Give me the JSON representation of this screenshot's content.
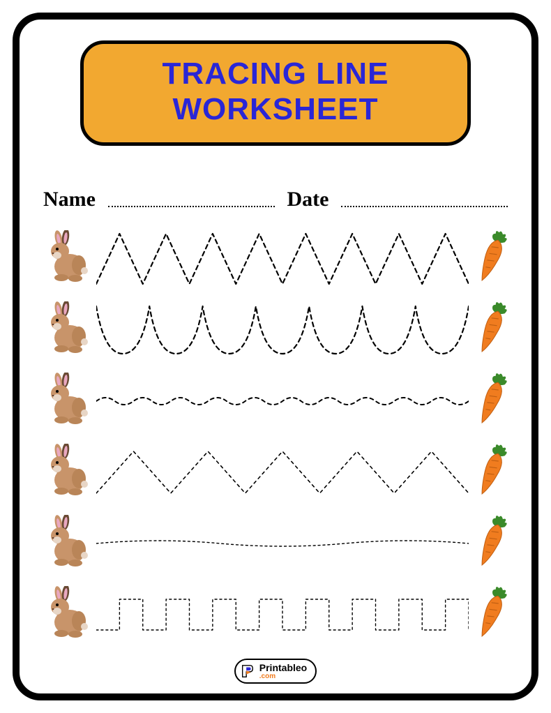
{
  "title_line1": "TRACING LINE",
  "title_line2": "WORKSHEET",
  "name_label": "Name",
  "date_label": "Date",
  "footer_brand": "Printableo",
  "footer_domain": ".com",
  "colors": {
    "title_bg": "#f2a830",
    "title_text": "#2a26d6",
    "border": "#000000",
    "rabbit_body": "#c8946a",
    "rabbit_ear": "#e9a8c0",
    "carrot_body": "#f07c1f",
    "carrot_leaf": "#3a8a2a",
    "trace_stroke": "#000000"
  },
  "trace_rows": [
    {
      "type": "zigzag-sharp",
      "amplitude": 36,
      "cycles": 8,
      "dash": "6,5",
      "stroke_width": 2.2
    },
    {
      "type": "wave-u",
      "amplitude": 34,
      "cycles": 7,
      "dash": "6,5",
      "stroke_width": 2.2
    },
    {
      "type": "wave-small",
      "amplitude": 10,
      "cycles": 20,
      "dash": "5,5",
      "stroke_width": 2
    },
    {
      "type": "zigzag-sharp",
      "amplitude": 30,
      "cycles": 5,
      "dash": "4,5",
      "stroke_width": 1.6
    },
    {
      "type": "wave-gentle",
      "amplitude": 8,
      "cycles": 3,
      "dash": "3,4",
      "stroke_width": 1.4
    },
    {
      "type": "square-wave",
      "amplitude": 22,
      "cycles": 8,
      "dash": "3,4",
      "stroke_width": 1.4
    }
  ]
}
